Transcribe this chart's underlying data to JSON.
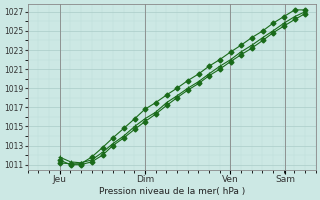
{
  "xlabel": "Pression niveau de la mer( hPa )",
  "bg_color": "#cce8e4",
  "grid_major_color": "#aaccc8",
  "grid_minor_color": "#bbddd8",
  "line_color": "#1a6b1a",
  "ylim": [
    1010.5,
    1027.8
  ],
  "yticks": [
    1011,
    1013,
    1015,
    1017,
    1019,
    1021,
    1023,
    1025,
    1027
  ],
  "xlim": [
    -0.5,
    4.0
  ],
  "day_labels": [
    "Jeu",
    "Dim",
    "Ven",
    "Sam"
  ],
  "day_positions": [
    0.0,
    1.33,
    2.66,
    3.52
  ],
  "line1_x": [
    0.0,
    0.17,
    0.33,
    0.5,
    0.67,
    0.83,
    1.0,
    1.17,
    1.33,
    1.5,
    1.67,
    1.83,
    2.0,
    2.17,
    2.33,
    2.5,
    2.67,
    2.83,
    3.0,
    3.17,
    3.33,
    3.5,
    3.67,
    3.83
  ],
  "line1_y": [
    1011.8,
    1011.3,
    1011.2,
    1011.5,
    1012.3,
    1013.2,
    1014.0,
    1015.0,
    1015.8,
    1016.5,
    1017.5,
    1018.2,
    1019.0,
    1019.7,
    1020.5,
    1021.3,
    1022.0,
    1022.8,
    1023.5,
    1024.3,
    1025.0,
    1025.8,
    1026.5,
    1027.0
  ],
  "line2_x": [
    0.0,
    0.17,
    0.33,
    0.5,
    0.67,
    0.83,
    1.0,
    1.17,
    1.33,
    1.5,
    1.67,
    1.83,
    2.0,
    2.17,
    2.33,
    2.5,
    2.67,
    2.83,
    3.0,
    3.17,
    3.33,
    3.5,
    3.67,
    3.83
  ],
  "line2_y": [
    1011.5,
    1011.0,
    1011.0,
    1011.3,
    1012.0,
    1013.0,
    1013.8,
    1014.7,
    1015.5,
    1016.3,
    1017.2,
    1018.0,
    1018.8,
    1019.5,
    1020.3,
    1021.0,
    1021.8,
    1022.5,
    1023.2,
    1024.0,
    1024.8,
    1025.5,
    1026.2,
    1026.8
  ],
  "line3_x": [
    0.0,
    0.17,
    0.33,
    0.5,
    0.67,
    0.83,
    1.0,
    1.17,
    1.33,
    1.5,
    1.67,
    1.83,
    2.0,
    2.17,
    2.33,
    2.5,
    2.67,
    2.83,
    3.0,
    3.17,
    3.33,
    3.5,
    3.67,
    3.83
  ],
  "line3_y": [
    1011.2,
    1011.1,
    1011.1,
    1011.8,
    1012.8,
    1013.8,
    1014.8,
    1015.8,
    1016.8,
    1017.5,
    1018.3,
    1019.0,
    1019.8,
    1020.5,
    1021.3,
    1022.0,
    1022.8,
    1023.5,
    1024.3,
    1025.0,
    1025.8,
    1026.5,
    1027.2,
    1027.2
  ]
}
